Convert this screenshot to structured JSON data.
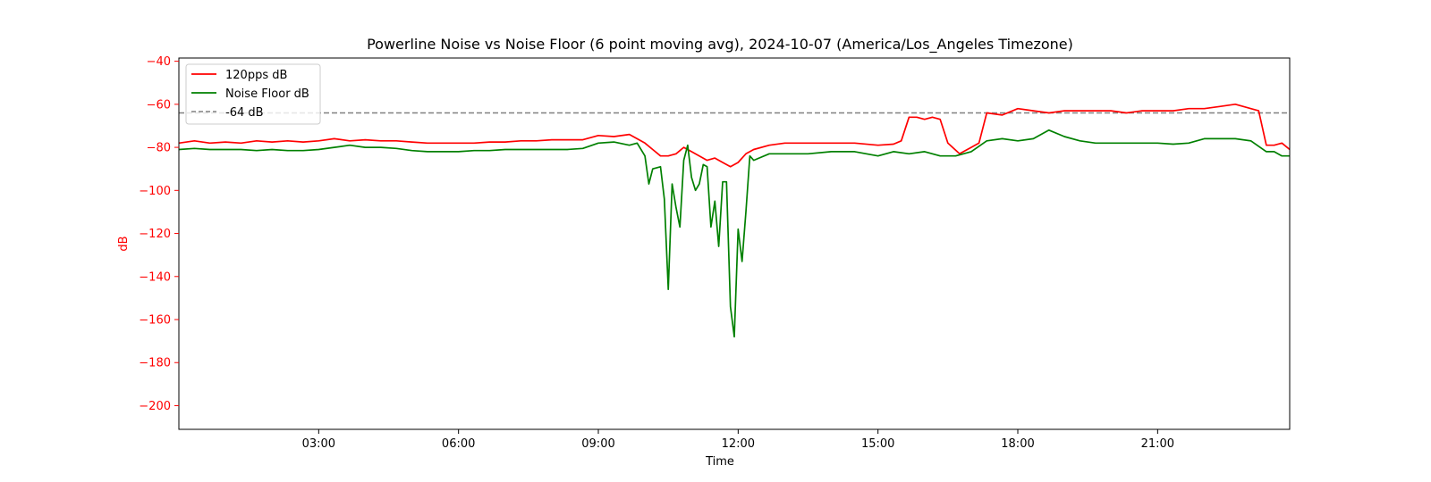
{
  "chart_data": {
    "type": "line",
    "title": "Powerline Noise vs Noise Floor (6 point moving avg), 2024-10-07 (America/Los_Angeles Timezone)",
    "xlabel": "Time",
    "ylabel": "dB",
    "xlim": [
      "00:00",
      "23:50"
    ],
    "ylim": [
      -211,
      -38.5
    ],
    "x_ticks": [
      "03:00",
      "06:00",
      "09:00",
      "12:00",
      "15:00",
      "18:00",
      "21:00"
    ],
    "y_ticks": [
      -40,
      -60,
      -80,
      -100,
      -120,
      -140,
      -160,
      -180,
      -200
    ],
    "grid": false,
    "legend_position": "top-left",
    "ylabel_color": "#ff0000",
    "reference_line": {
      "name": "-64 dB",
      "y": -64,
      "color": "#808080",
      "style": "dashed"
    },
    "series": [
      {
        "name": "120pps dB",
        "color": "#ff0000",
        "points": [
          [
            "00:00",
            -78
          ],
          [
            "00:20",
            -77
          ],
          [
            "00:40",
            -78
          ],
          [
            "01:00",
            -77.5
          ],
          [
            "01:20",
            -78
          ],
          [
            "01:40",
            -77
          ],
          [
            "02:00",
            -77.5
          ],
          [
            "02:20",
            -77
          ],
          [
            "02:40",
            -77.5
          ],
          [
            "03:00",
            -77
          ],
          [
            "03:20",
            -76
          ],
          [
            "03:40",
            -77
          ],
          [
            "04:00",
            -76.5
          ],
          [
            "04:20",
            -77
          ],
          [
            "04:40",
            -77
          ],
          [
            "05:00",
            -77.5
          ],
          [
            "05:20",
            -78
          ],
          [
            "05:40",
            -78
          ],
          [
            "06:00",
            -78
          ],
          [
            "06:20",
            -78
          ],
          [
            "06:40",
            -77.5
          ],
          [
            "07:00",
            -77.5
          ],
          [
            "07:20",
            -77
          ],
          [
            "07:40",
            -77
          ],
          [
            "08:00",
            -76.5
          ],
          [
            "08:20",
            -76.5
          ],
          [
            "08:40",
            -76.5
          ],
          [
            "09:00",
            -74.5
          ],
          [
            "09:20",
            -75
          ],
          [
            "09:40",
            -74
          ],
          [
            "10:00",
            -78
          ],
          [
            "10:10",
            -81
          ],
          [
            "10:20",
            -84
          ],
          [
            "10:30",
            -84
          ],
          [
            "10:40",
            -83
          ],
          [
            "10:50",
            -80
          ],
          [
            "11:00",
            -82
          ],
          [
            "11:10",
            -84
          ],
          [
            "11:20",
            -86
          ],
          [
            "11:30",
            -85
          ],
          [
            "11:40",
            -87
          ],
          [
            "11:50",
            -89
          ],
          [
            "12:00",
            -87
          ],
          [
            "12:10",
            -83
          ],
          [
            "12:20",
            -81
          ],
          [
            "12:40",
            -79
          ],
          [
            "13:00",
            -78
          ],
          [
            "13:30",
            -78
          ],
          [
            "14:00",
            -78
          ],
          [
            "14:30",
            -78
          ],
          [
            "15:00",
            -79
          ],
          [
            "15:20",
            -78.5
          ],
          [
            "15:30",
            -77
          ],
          [
            "15:40",
            -66
          ],
          [
            "15:50",
            -66
          ],
          [
            "16:00",
            -67
          ],
          [
            "16:10",
            -66
          ],
          [
            "16:20",
            -67
          ],
          [
            "16:30",
            -78
          ],
          [
            "16:45",
            -83
          ],
          [
            "17:00",
            -80
          ],
          [
            "17:10",
            -78
          ],
          [
            "17:20",
            -64
          ],
          [
            "17:40",
            -65
          ],
          [
            "18:00",
            -62
          ],
          [
            "18:20",
            -63
          ],
          [
            "18:40",
            -64
          ],
          [
            "19:00",
            -63
          ],
          [
            "19:20",
            -63
          ],
          [
            "19:40",
            -63
          ],
          [
            "20:00",
            -63
          ],
          [
            "20:20",
            -64
          ],
          [
            "20:40",
            -63
          ],
          [
            "21:00",
            -63
          ],
          [
            "21:20",
            -63
          ],
          [
            "21:40",
            -62
          ],
          [
            "22:00",
            -62
          ],
          [
            "22:20",
            -61
          ],
          [
            "22:40",
            -60
          ],
          [
            "23:00",
            -62
          ],
          [
            "23:10",
            -63
          ],
          [
            "23:20",
            -79
          ],
          [
            "23:30",
            -79
          ],
          [
            "23:40",
            -78
          ],
          [
            "23:50",
            -81
          ]
        ]
      },
      {
        "name": "Noise Floor dB",
        "color": "#008000",
        "points": [
          [
            "00:00",
            -81
          ],
          [
            "00:20",
            -80.5
          ],
          [
            "00:40",
            -81
          ],
          [
            "01:00",
            -81
          ],
          [
            "01:20",
            -81
          ],
          [
            "01:40",
            -81.5
          ],
          [
            "02:00",
            -81
          ],
          [
            "02:20",
            -81.5
          ],
          [
            "02:40",
            -81.5
          ],
          [
            "03:00",
            -81
          ],
          [
            "03:20",
            -80
          ],
          [
            "03:40",
            -79
          ],
          [
            "04:00",
            -80
          ],
          [
            "04:20",
            -80
          ],
          [
            "04:40",
            -80.5
          ],
          [
            "05:00",
            -81.5
          ],
          [
            "05:20",
            -82
          ],
          [
            "05:40",
            -82
          ],
          [
            "06:00",
            -82
          ],
          [
            "06:20",
            -81.5
          ],
          [
            "06:40",
            -81.5
          ],
          [
            "07:00",
            -81
          ],
          [
            "07:20",
            -81
          ],
          [
            "07:40",
            -81
          ],
          [
            "08:00",
            -81
          ],
          [
            "08:20",
            -81
          ],
          [
            "08:40",
            -80.5
          ],
          [
            "09:00",
            -78
          ],
          [
            "09:20",
            -77.5
          ],
          [
            "09:40",
            -79
          ],
          [
            "09:50",
            -78
          ],
          [
            "10:00",
            -84
          ],
          [
            "10:05",
            -97
          ],
          [
            "10:10",
            -90
          ],
          [
            "10:20",
            -89
          ],
          [
            "10:25",
            -104
          ],
          [
            "10:30",
            -146
          ],
          [
            "10:35",
            -97
          ],
          [
            "10:40",
            -108
          ],
          [
            "10:45",
            -117
          ],
          [
            "10:50",
            -86
          ],
          [
            "10:55",
            -79
          ],
          [
            "11:00",
            -94
          ],
          [
            "11:05",
            -100
          ],
          [
            "11:10",
            -97
          ],
          [
            "11:15",
            -88
          ],
          [
            "11:20",
            -89
          ],
          [
            "11:25",
            -117
          ],
          [
            "11:30",
            -105
          ],
          [
            "11:35",
            -126
          ],
          [
            "11:40",
            -96
          ],
          [
            "11:45",
            -96
          ],
          [
            "11:50",
            -154
          ],
          [
            "11:55",
            -168
          ],
          [
            "12:00",
            -118
          ],
          [
            "12:05",
            -133
          ],
          [
            "12:10",
            -110
          ],
          [
            "12:15",
            -84
          ],
          [
            "12:20",
            -86
          ],
          [
            "12:40",
            -83
          ],
          [
            "13:00",
            -83
          ],
          [
            "13:30",
            -83
          ],
          [
            "14:00",
            -82
          ],
          [
            "14:30",
            -82
          ],
          [
            "15:00",
            -84
          ],
          [
            "15:20",
            -82
          ],
          [
            "15:40",
            -83
          ],
          [
            "16:00",
            -82
          ],
          [
            "16:20",
            -84
          ],
          [
            "16:40",
            -84
          ],
          [
            "17:00",
            -82
          ],
          [
            "17:20",
            -77
          ],
          [
            "17:40",
            -76
          ],
          [
            "18:00",
            -77
          ],
          [
            "18:20",
            -76
          ],
          [
            "18:40",
            -72
          ],
          [
            "19:00",
            -75
          ],
          [
            "19:20",
            -77
          ],
          [
            "19:40",
            -78
          ],
          [
            "20:00",
            -78
          ],
          [
            "20:20",
            -78
          ],
          [
            "20:40",
            -78
          ],
          [
            "21:00",
            -78
          ],
          [
            "21:20",
            -78.5
          ],
          [
            "21:40",
            -78
          ],
          [
            "22:00",
            -76
          ],
          [
            "22:20",
            -76
          ],
          [
            "22:40",
            -76
          ],
          [
            "23:00",
            -77
          ],
          [
            "23:20",
            -82
          ],
          [
            "23:30",
            -82
          ],
          [
            "23:40",
            -84
          ],
          [
            "23:50",
            -84
          ]
        ]
      }
    ]
  }
}
